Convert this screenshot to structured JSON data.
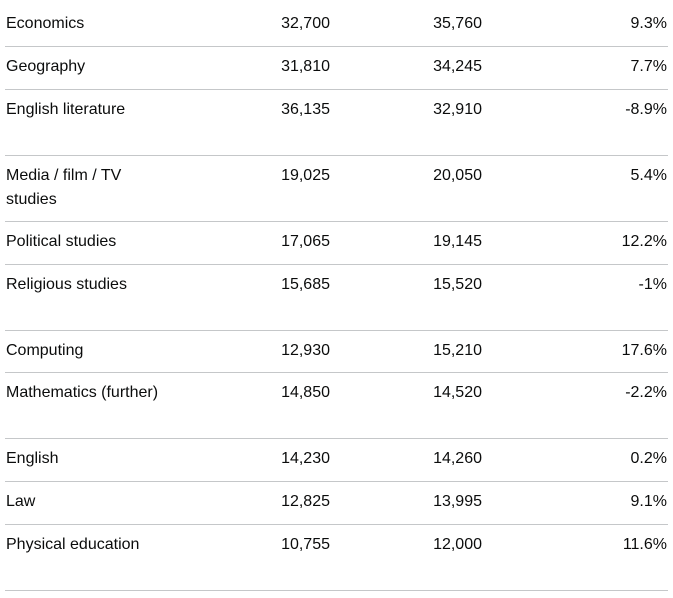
{
  "table": {
    "rows": [
      {
        "subject": "Economics",
        "a": "32,700",
        "b": "35,760",
        "change": "9.3%"
      },
      {
        "subject": "Geography",
        "a": "31,810",
        "b": "34,245",
        "change": "7.7%"
      },
      {
        "subject": "English literature",
        "a": "36,135",
        "b": "32,910",
        "change": "-8.9%"
      },
      {
        "subject": "Media / film / TV studies",
        "a": "19,025",
        "b": "20,050",
        "change": "5.4%"
      },
      {
        "subject": "Political studies",
        "a": "17,065",
        "b": "19,145",
        "change": "12.2%"
      },
      {
        "subject": "Religious studies",
        "a": "15,685",
        "b": "15,520",
        "change": "-1%"
      },
      {
        "subject": "Computing",
        "a": "12,930",
        "b": "15,210",
        "change": "17.6%"
      },
      {
        "subject": "Mathematics (further)",
        "a": "14,850",
        "b": "14,520",
        "change": "-2.2%"
      },
      {
        "subject": "English",
        "a": "14,230",
        "b": "14,260",
        "change": "0.2%"
      },
      {
        "subject": "Law",
        "a": "12,825",
        "b": "13,995",
        "change": "9.1%"
      },
      {
        "subject": "Physical education",
        "a": "10,755",
        "b": "12,000",
        "change": "11.6%"
      }
    ]
  }
}
